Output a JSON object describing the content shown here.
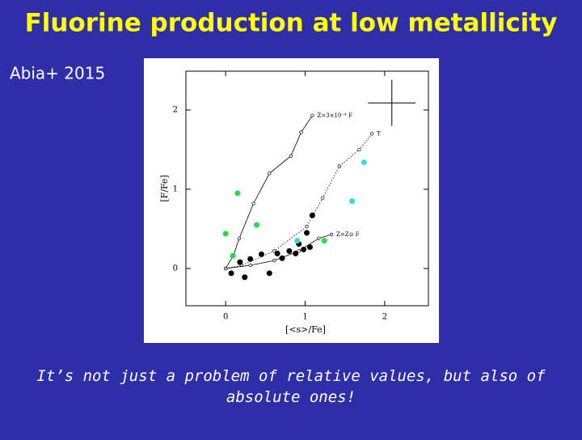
{
  "title": "Fluorine production at low metallicity",
  "citation": "Abia+ 2015",
  "caption": "It’s not just a problem of relative values, but also of absolute ones!",
  "chart_data": {
    "type": "scatter",
    "x_label": "[<s>/Fe]",
    "y_label": "[F/Fe]",
    "xlim": [
      -0.5,
      2.55
    ],
    "ylim": [
      -0.47,
      2.49
    ],
    "xticks": [
      0,
      1,
      2
    ],
    "yticks": [
      0,
      1,
      2
    ],
    "series": [
      {
        "name": "Z=3×10⁻⁴ F",
        "style": "line",
        "dash": false,
        "color": "#000000",
        "x": [
          0,
          0.1,
          0.17,
          0.35,
          0.55,
          0.82,
          0.95,
          1.09
        ],
        "values": [
          0,
          0.17,
          0.38,
          0.82,
          1.2,
          1.42,
          1.72,
          1.93
        ]
      },
      {
        "name": "T",
        "style": "line",
        "dash": true,
        "color": "#000000",
        "x": [
          0,
          0.2,
          0.61,
          1.02,
          1.22,
          1.43,
          1.68,
          1.84
        ],
        "values": [
          0,
          0.04,
          0.22,
          0.53,
          0.89,
          1.29,
          1.5,
          1.7
        ]
      },
      {
        "name": "Z=Z⊙ F",
        "style": "line",
        "dash": false,
        "color": "#000000",
        "x": [
          0,
          0.31,
          0.61,
          0.92,
          1.17,
          1.33
        ],
        "values": [
          0,
          0.04,
          0.1,
          0.22,
          0.38,
          0.43
        ]
      },
      {
        "style": "points",
        "color": "#000000",
        "x": [
          0.07,
          0.24,
          0.18,
          0.31,
          0.45,
          0.55,
          0.65,
          0.71,
          0.8,
          0.88,
          0.98,
          1.06,
          1.02,
          1.09,
          0.92
        ],
        "values": [
          -0.06,
          -0.11,
          0.08,
          0.12,
          0.18,
          -0.06,
          0.19,
          0.13,
          0.22,
          0.19,
          0.24,
          0.27,
          0.45,
          0.67,
          0.31
        ]
      },
      {
        "style": "points",
        "color": "#22dd44",
        "x": [
          0,
          0.15,
          0.39,
          0.09,
          1.24
        ],
        "values": [
          0.44,
          0.95,
          0.55,
          0.16,
          0.35
        ]
      },
      {
        "style": "points",
        "color": "#33dddd",
        "x": [
          0.9,
          1.59,
          1.74
        ],
        "values": [
          0.35,
          0.85,
          1.34
        ]
      }
    ],
    "error_bar": {
      "x": 2.09,
      "y": 2.09,
      "xerr": 0.3,
      "yerr": 0.29
    }
  }
}
